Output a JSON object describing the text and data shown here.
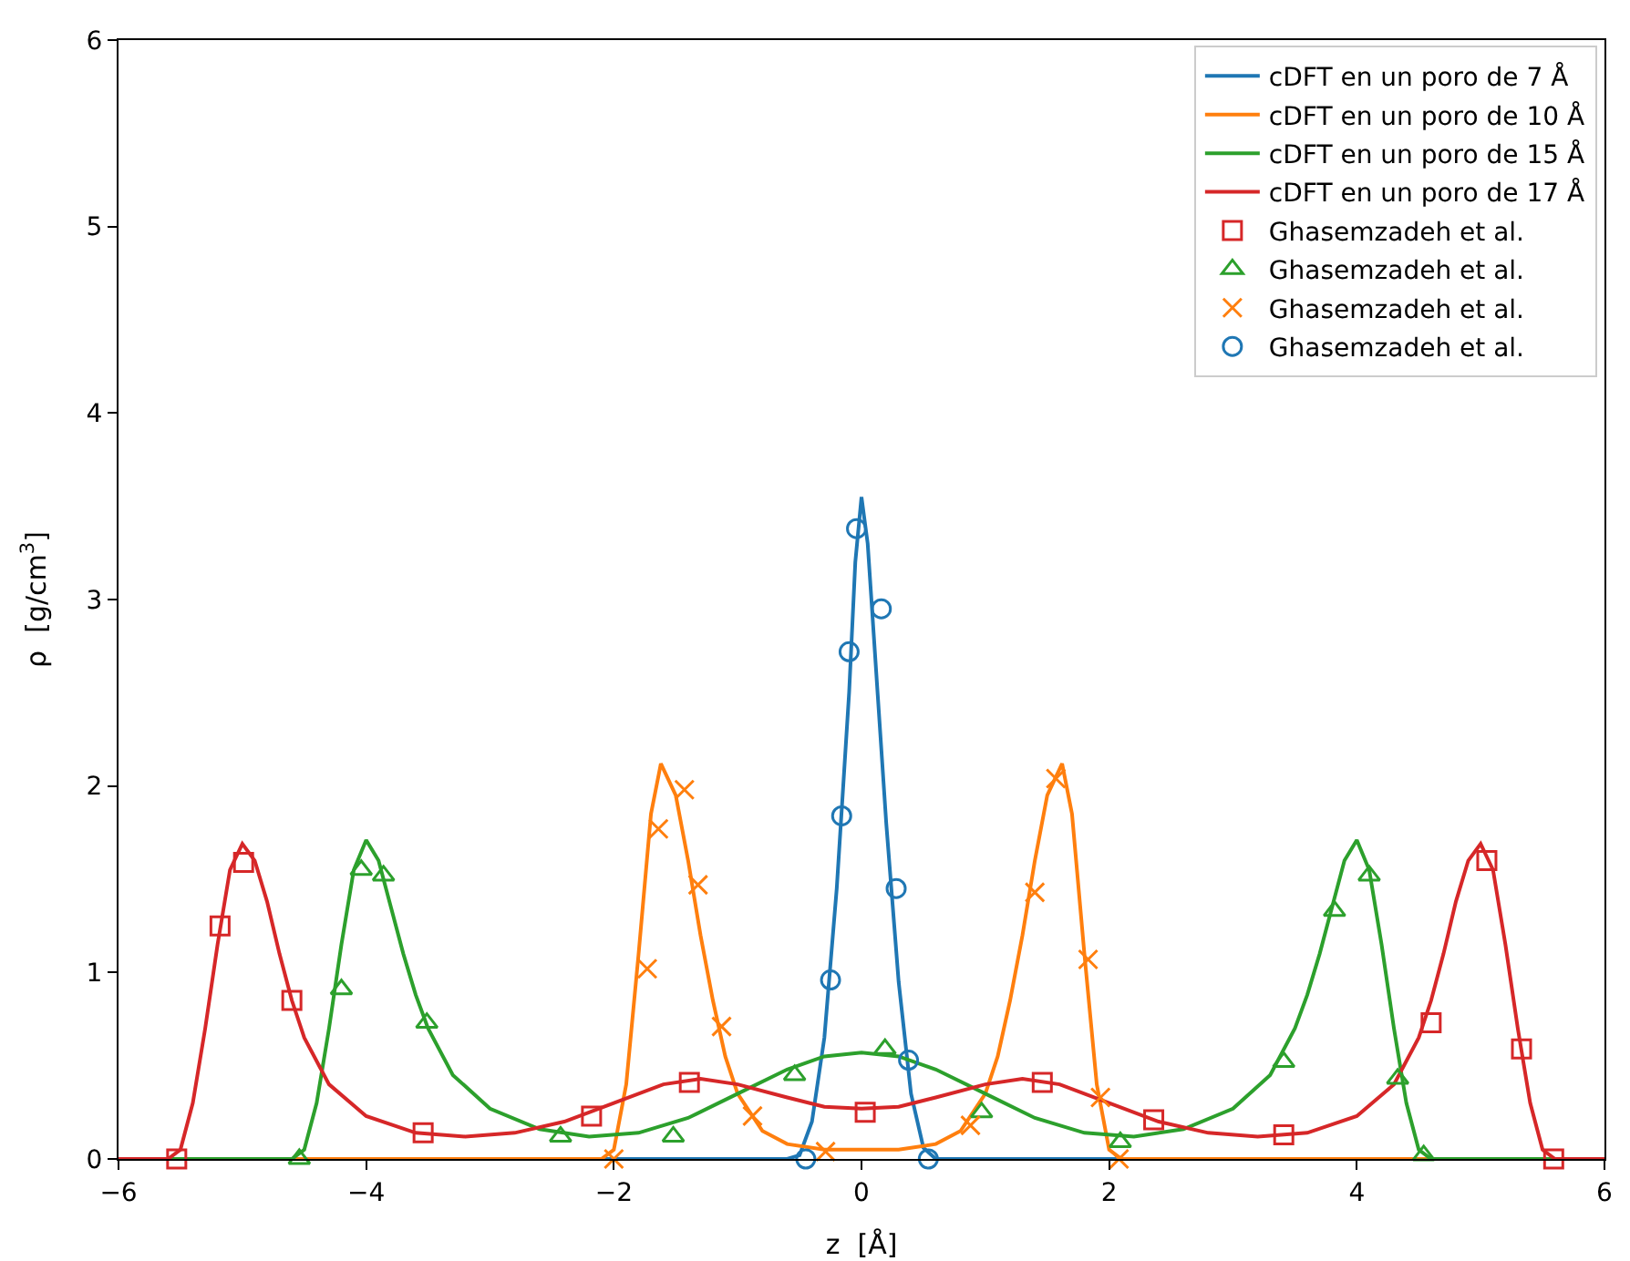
{
  "chart_data": {
    "type": "line",
    "xlabel": "z  [Å]",
    "ylabel": "ρ  [g/cm$^{3}$]",
    "xlim": [
      -6,
      6
    ],
    "ylim": [
      0,
      6
    ],
    "xticks": [
      {
        "value": -6,
        "label": "−6"
      },
      {
        "value": -4,
        "label": "−4"
      },
      {
        "value": -2,
        "label": "−2"
      },
      0,
      2,
      4,
      6
    ],
    "yticks": [
      0,
      1,
      2,
      3,
      4,
      5,
      6
    ],
    "grid": false,
    "legend": "top right",
    "marker": "none",
    "line_style": "solid",
    "series": [
      {
        "name": "cDFT en un poro de 7 Å",
        "color": "#1f77b4",
        "x": [
          -6,
          -0.6,
          -0.5,
          -0.4,
          -0.3,
          -0.2,
          -0.1,
          -0.05,
          0,
          0.05,
          0.1,
          0.2,
          0.3,
          0.4,
          0.5,
          0.6,
          6
        ],
        "values": [
          0,
          0,
          0.02,
          0.2,
          0.65,
          1.45,
          2.5,
          3.2,
          3.55,
          3.3,
          2.8,
          1.8,
          0.95,
          0.35,
          0.06,
          0,
          0
        ]
      },
      {
        "name": "cDFT en un poro de 10 Å",
        "color": "#ff7f0e",
        "x": [
          -6,
          -2.1,
          -2.0,
          -1.9,
          -1.8,
          -1.7,
          -1.62,
          -1.5,
          -1.4,
          -1.3,
          -1.2,
          -1.1,
          -1.0,
          -0.8,
          -0.6,
          -0.3,
          0,
          0.3,
          0.6,
          0.8,
          1.0,
          1.1,
          1.2,
          1.3,
          1.4,
          1.5,
          1.62,
          1.7,
          1.8,
          1.9,
          2.0,
          2.1,
          6
        ],
        "values": [
          0,
          0,
          0.05,
          0.4,
          1.1,
          1.85,
          2.12,
          1.95,
          1.6,
          1.2,
          0.85,
          0.55,
          0.35,
          0.15,
          0.08,
          0.05,
          0.05,
          0.05,
          0.08,
          0.15,
          0.35,
          0.55,
          0.85,
          1.2,
          1.6,
          1.95,
          2.12,
          1.85,
          1.1,
          0.4,
          0.05,
          0,
          0
        ]
      },
      {
        "name": "cDFT en un poro de 15 Å",
        "color": "#2ca02c",
        "x": [
          -6,
          -4.6,
          -4.5,
          -4.4,
          -4.3,
          -4.2,
          -4.1,
          -4.0,
          -3.9,
          -3.8,
          -3.7,
          -3.6,
          -3.5,
          -3.3,
          -3.0,
          -2.6,
          -2.2,
          -1.8,
          -1.4,
          -1.0,
          -0.6,
          -0.3,
          0,
          0.3,
          0.6,
          1.0,
          1.4,
          1.8,
          2.2,
          2.6,
          3.0,
          3.3,
          3.5,
          3.6,
          3.7,
          3.8,
          3.9,
          4.0,
          4.1,
          4.2,
          4.3,
          4.4,
          4.5,
          4.6,
          6
        ],
        "values": [
          0,
          0,
          0.05,
          0.3,
          0.7,
          1.15,
          1.55,
          1.71,
          1.6,
          1.35,
          1.1,
          0.88,
          0.7,
          0.45,
          0.27,
          0.16,
          0.12,
          0.14,
          0.22,
          0.35,
          0.48,
          0.55,
          0.57,
          0.55,
          0.48,
          0.35,
          0.22,
          0.14,
          0.12,
          0.16,
          0.27,
          0.45,
          0.7,
          0.88,
          1.1,
          1.35,
          1.6,
          1.71,
          1.55,
          1.15,
          0.7,
          0.3,
          0.05,
          0,
          0
        ]
      },
      {
        "name": "cDFT en un poro de 17 Å",
        "color": "#d62728",
        "x": [
          -6,
          -5.6,
          -5.5,
          -5.4,
          -5.3,
          -5.2,
          -5.1,
          -5.0,
          -4.9,
          -4.8,
          -4.7,
          -4.6,
          -4.5,
          -4.3,
          -4.0,
          -3.6,
          -3.2,
          -2.8,
          -2.4,
          -2.0,
          -1.6,
          -1.3,
          -1.0,
          -0.6,
          -0.3,
          0,
          0.3,
          0.6,
          1.0,
          1.3,
          1.6,
          2.0,
          2.4,
          2.8,
          3.2,
          3.6,
          4.0,
          4.3,
          4.5,
          4.6,
          4.7,
          4.8,
          4.9,
          5.0,
          5.1,
          5.2,
          5.3,
          5.4,
          5.5,
          5.6,
          6
        ],
        "values": [
          0,
          0,
          0.05,
          0.3,
          0.7,
          1.15,
          1.55,
          1.69,
          1.6,
          1.38,
          1.1,
          0.85,
          0.65,
          0.4,
          0.23,
          0.14,
          0.12,
          0.14,
          0.2,
          0.3,
          0.4,
          0.43,
          0.4,
          0.33,
          0.28,
          0.27,
          0.28,
          0.33,
          0.4,
          0.43,
          0.4,
          0.3,
          0.2,
          0.14,
          0.12,
          0.14,
          0.23,
          0.4,
          0.65,
          0.85,
          1.1,
          1.38,
          1.6,
          1.69,
          1.55,
          1.15,
          0.7,
          0.3,
          0.05,
          0,
          0
        ]
      },
      {
        "name": "Ghasemzadeh et al.",
        "type": "scatter",
        "marker": "square",
        "color": "#d62728",
        "x": [
          -5.53,
          -5.18,
          -4.99,
          -4.6,
          -3.54,
          -2.18,
          -1.39,
          0.03,
          1.46,
          2.36,
          3.41,
          4.6,
          5.05,
          5.33,
          5.59
        ],
        "values": [
          0,
          1.25,
          1.59,
          0.85,
          0.14,
          0.23,
          0.41,
          0.25,
          0.41,
          0.21,
          0.13,
          0.73,
          1.6,
          0.59,
          0
        ]
      },
      {
        "name": "Ghasemzadeh et al.",
        "type": "scatter",
        "marker": "triangle",
        "color": "#2ca02c",
        "x": [
          -4.54,
          -4.2,
          -4.04,
          -3.86,
          -3.51,
          -2.43,
          -1.52,
          -0.54,
          0.19,
          0.97,
          2.09,
          3.41,
          3.82,
          4.1,
          4.33,
          4.54
        ],
        "values": [
          0,
          0.91,
          1.55,
          1.52,
          0.73,
          0.12,
          0.12,
          0.45,
          0.59,
          0.25,
          0.09,
          0.52,
          1.33,
          1.52,
          0.43,
          0.02
        ]
      },
      {
        "name": "Ghasemzadeh et al.",
        "type": "scatter",
        "marker": "cross",
        "color": "#ff7f0e",
        "x": [
          -2.0,
          -1.73,
          -1.64,
          -1.43,
          -1.32,
          -1.13,
          -0.88,
          -0.29,
          0.88,
          1.4,
          1.57,
          1.83,
          1.93,
          2.08
        ],
        "values": [
          0,
          1.02,
          1.77,
          1.98,
          1.47,
          0.71,
          0.23,
          0.04,
          0.18,
          1.43,
          2.04,
          1.07,
          0.33,
          0
        ]
      },
      {
        "name": "Ghasemzadeh et al.",
        "type": "scatter",
        "marker": "circle",
        "color": "#1f77b4",
        "x": [
          -0.45,
          -0.25,
          -0.16,
          -0.1,
          -0.04,
          0.16,
          0.28,
          0.38,
          0.54
        ],
        "values": [
          0,
          0.96,
          1.84,
          2.72,
          3.38,
          2.95,
          1.45,
          0.53,
          0
        ]
      }
    ]
  }
}
